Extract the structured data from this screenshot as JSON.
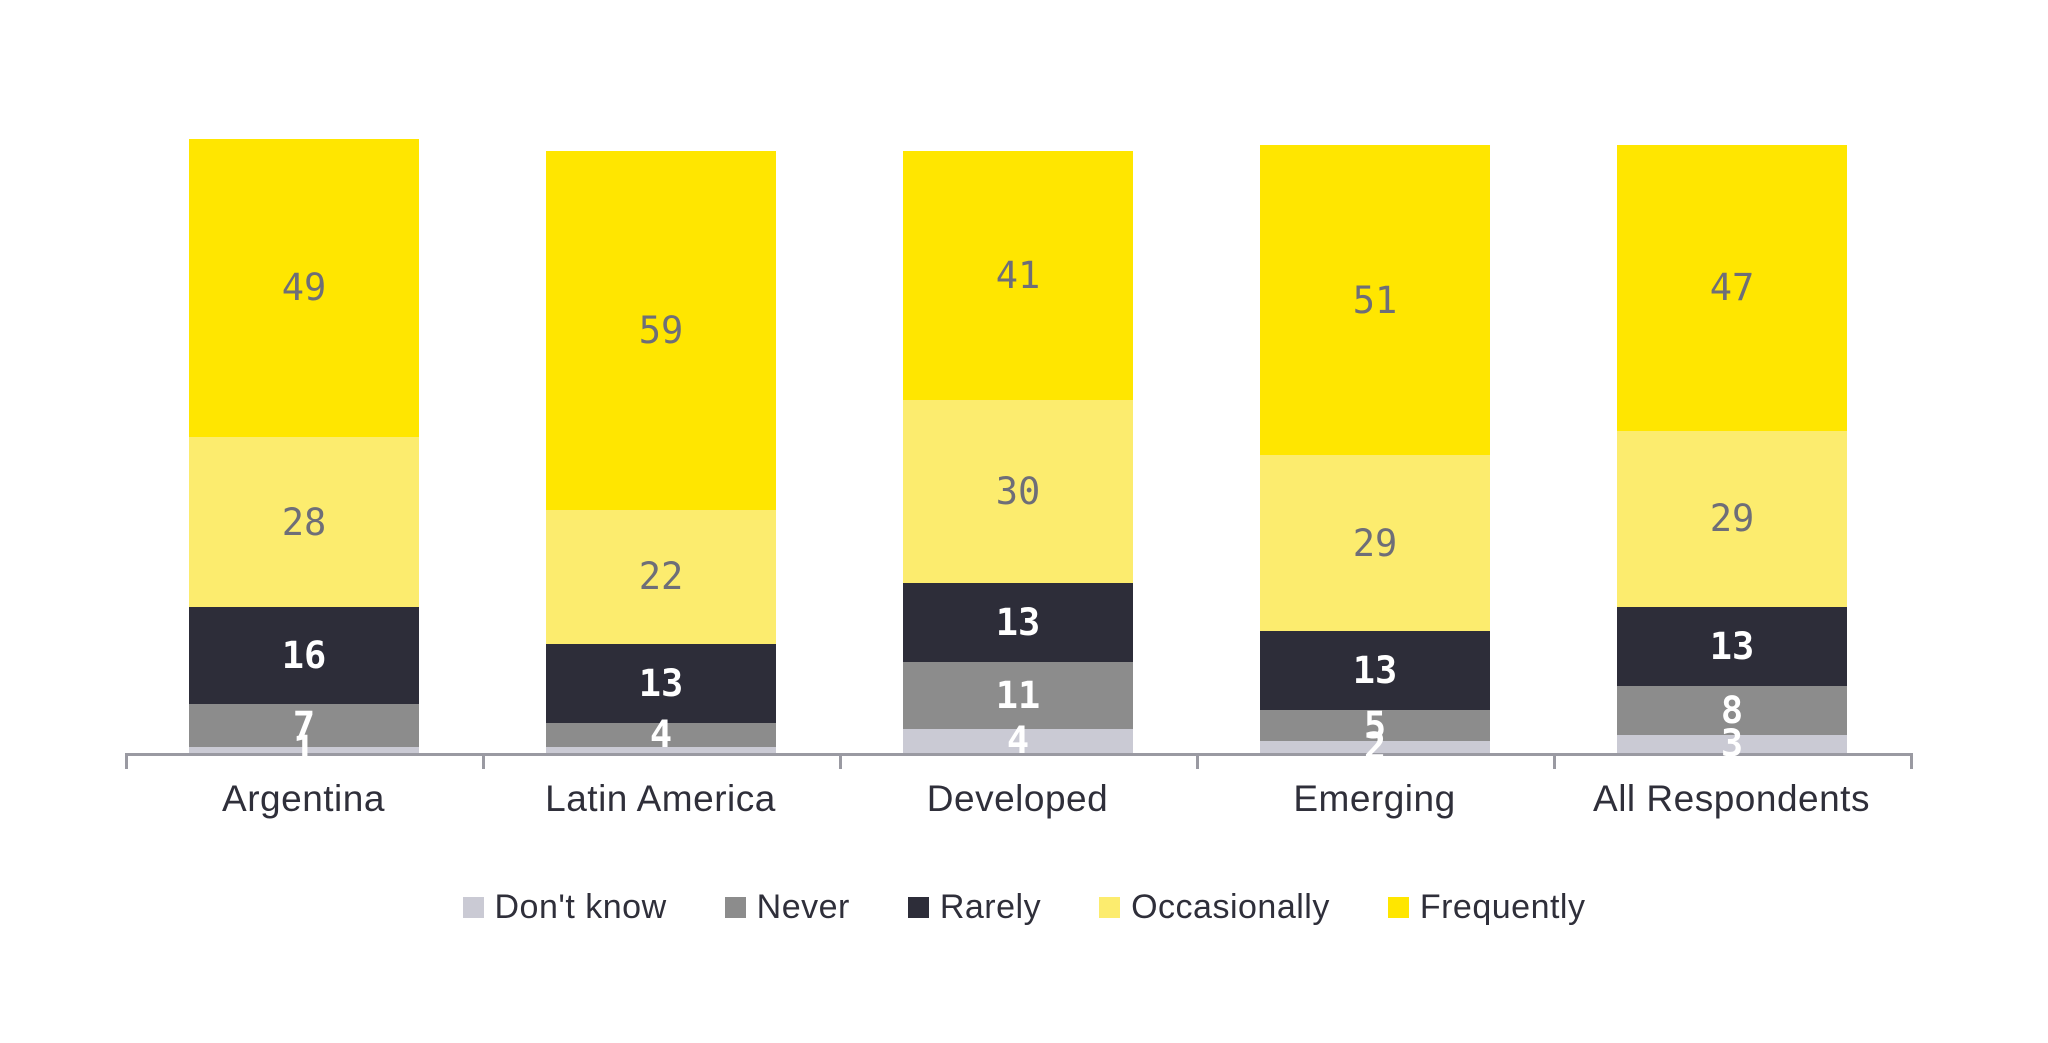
{
  "chart_data": {
    "type": "bar",
    "stacked": true,
    "orientation": "vertical",
    "title": "",
    "xlabel": "",
    "ylabel": "",
    "grid": false,
    "legend_position": "bottom-center",
    "categories": [
      "Argentina",
      "Latin America",
      "Developed",
      "Emerging",
      "All Respondents"
    ],
    "series": [
      {
        "name": "Don't know",
        "color": "#CACAD4",
        "label_color": "#FFFFFF",
        "label_style": "light",
        "values": [
          1,
          1,
          4,
          2,
          3
        ],
        "labels": [
          "1",
          "",
          "4",
          "2",
          "3"
        ]
      },
      {
        "name": "Never",
        "color": "#8C8C8C",
        "label_color": "#FFFFFF",
        "label_style": "light",
        "values": [
          7,
          4,
          11,
          5,
          8
        ],
        "labels": [
          "7",
          "4",
          "11",
          "5",
          "8"
        ]
      },
      {
        "name": "Rarely",
        "color": "#2D2D39",
        "label_color": "#FFFFFF",
        "label_style": "light",
        "values": [
          16,
          13,
          13,
          13,
          13
        ],
        "labels": [
          "16",
          "13",
          "13",
          "13",
          "13"
        ]
      },
      {
        "name": "Occasionally",
        "color": "#FCEC6E",
        "label_color": "#6E6E78",
        "label_style": "dark",
        "values": [
          28,
          22,
          30,
          29,
          29
        ],
        "labels": [
          "28",
          "22",
          "30",
          "29",
          "29"
        ]
      },
      {
        "name": "Frequently",
        "color": "#FFE600",
        "label_color": "#6E6E78",
        "label_style": "dark",
        "values": [
          49,
          59,
          41,
          51,
          47
        ],
        "labels": [
          "49",
          "59",
          "41",
          "51",
          "47"
        ]
      }
    ],
    "legend": [
      "Don't know",
      "Never",
      "Rarely",
      "Occasionally",
      "Frequently"
    ],
    "category_totals": [
      101,
      99,
      99,
      100,
      100
    ],
    "axis": {
      "baseline_color": "#9A9AA2",
      "tick_marks": true,
      "value_range_note": "segment heights are percentages of respondents"
    }
  }
}
